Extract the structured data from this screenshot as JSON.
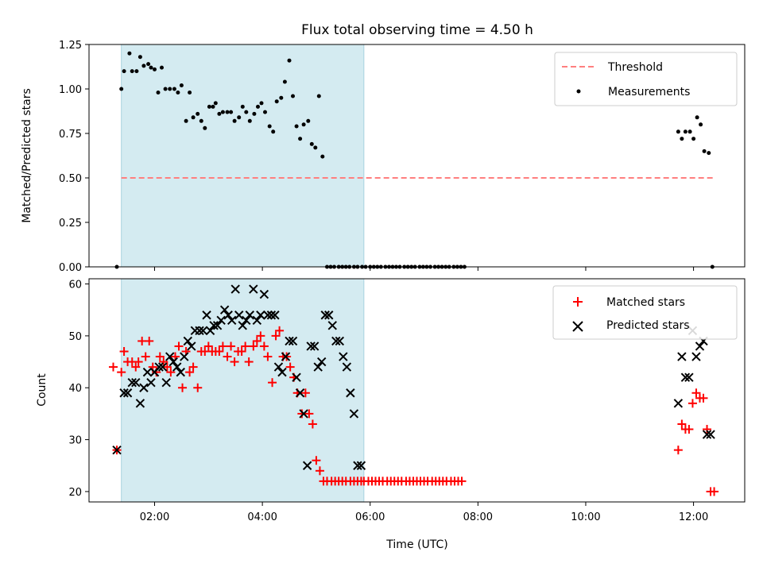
{
  "chart_data": [
    {
      "type": "scatter",
      "title": "Flux total observing time = 4.50 h",
      "xlabel": "",
      "ylabel": "Matched/Predicted stars",
      "ylim": [
        0,
        1.25
      ],
      "yticks": [
        "0.00",
        "0.25",
        "0.50",
        "0.75",
        "1.00",
        "1.25"
      ],
      "xlim": [
        "00:47",
        "12:57"
      ],
      "legend_position": "top-right",
      "shaded_interval": {
        "start": "01:23",
        "end": "05:53",
        "color": "#d4ebf1"
      },
      "threshold": {
        "name": "Threshold",
        "value": 0.5,
        "x_start": "01:23",
        "x_end": "12:23",
        "color": "#ff7f7f"
      },
      "series": [
        {
          "name": "Measurements",
          "color": "#000000",
          "marker": "dot",
          "x": [
            "01:18",
            "01:23",
            "01:26",
            "01:32",
            "01:35",
            "01:40",
            "01:44",
            "01:48",
            "01:53",
            "01:56",
            "02:00",
            "02:04",
            "02:08",
            "02:12",
            "02:17",
            "02:22",
            "02:26",
            "02:30",
            "02:35",
            "02:39",
            "02:43",
            "02:48",
            "02:52",
            "02:56",
            "03:01",
            "03:05",
            "03:08",
            "03:12",
            "03:16",
            "03:21",
            "03:25",
            "03:29",
            "03:34",
            "03:38",
            "03:42",
            "03:46",
            "03:51",
            "03:55",
            "03:59",
            "04:03",
            "04:08",
            "04:12",
            "04:16",
            "04:21",
            "04:25",
            "04:30",
            "04:34",
            "04:38",
            "04:42",
            "04:46",
            "04:51",
            "04:55",
            "04:59",
            "05:03",
            "05:07",
            "05:12",
            "05:16",
            "05:20",
            "05:25",
            "05:29",
            "05:33",
            "05:37",
            "05:42",
            "05:46",
            "05:51",
            "05:55",
            "06:00",
            "06:04",
            "06:08",
            "06:12",
            "06:17",
            "06:21",
            "06:25",
            "06:29",
            "06:33",
            "06:38",
            "06:42",
            "06:46",
            "06:50",
            "06:55",
            "06:59",
            "07:03",
            "07:07",
            "07:12",
            "07:16",
            "07:20",
            "07:24",
            "07:28",
            "07:33",
            "07:37",
            "07:41",
            "07:45",
            "11:43",
            "11:47",
            "11:51",
            "11:56",
            "12:00",
            "12:04",
            "12:08",
            "12:12",
            "12:17",
            "12:21"
          ],
          "y": [
            0.0,
            1.0,
            1.1,
            1.2,
            1.1,
            1.1,
            1.18,
            1.13,
            1.14,
            1.12,
            1.11,
            0.98,
            1.12,
            1.0,
            1.0,
            1.0,
            0.98,
            1.02,
            0.82,
            0.98,
            0.84,
            0.86,
            0.82,
            0.78,
            0.9,
            0.9,
            0.92,
            0.86,
            0.87,
            0.87,
            0.87,
            0.82,
            0.84,
            0.9,
            0.87,
            0.82,
            0.86,
            0.9,
            0.92,
            0.87,
            0.79,
            0.76,
            0.93,
            0.95,
            1.04,
            1.16,
            0.96,
            0.79,
            0.72,
            0.8,
            0.82,
            0.69,
            0.67,
            0.96,
            0.62,
            0.0,
            0.0,
            0.0,
            0.0,
            0.0,
            0.0,
            0.0,
            0.0,
            0.0,
            0.0,
            0.0,
            0.0,
            0.0,
            0.0,
            0.0,
            0.0,
            0.0,
            0.0,
            0.0,
            0.0,
            0.0,
            0.0,
            0.0,
            0.0,
            0.0,
            0.0,
            0.0,
            0.0,
            0.0,
            0.0,
            0.0,
            0.0,
            0.0,
            0.0,
            0.0,
            0.0,
            0.0,
            0.76,
            0.72,
            0.76,
            0.76,
            0.72,
            0.84,
            0.8,
            0.65,
            0.64,
            0.0
          ]
        }
      ]
    },
    {
      "type": "scatter",
      "title": "",
      "xlabel": "Time (UTC)",
      "ylabel": "Count",
      "ylim": [
        18,
        61
      ],
      "yticks": [
        "20",
        "30",
        "40",
        "50",
        "60"
      ],
      "xticks": [
        "02:00",
        "04:00",
        "06:00",
        "08:00",
        "10:00",
        "12:00"
      ],
      "xlim": [
        "00:47",
        "12:57"
      ],
      "legend_position": "top-right",
      "shaded_interval": {
        "start": "01:23",
        "end": "05:53",
        "color": "#d4ebf1"
      },
      "series": [
        {
          "name": "Matched stars",
          "color": "#ff0000",
          "marker": "plus",
          "x": [
            "01:14",
            "01:18",
            "01:23",
            "01:26",
            "01:30",
            "01:35",
            "01:39",
            "01:42",
            "01:46",
            "01:50",
            "01:54",
            "01:58",
            "02:02",
            "02:06",
            "02:10",
            "02:14",
            "02:18",
            "02:23",
            "02:27",
            "02:31",
            "02:35",
            "02:39",
            "02:43",
            "02:48",
            "02:52",
            "02:56",
            "03:00",
            "03:04",
            "03:08",
            "03:12",
            "03:16",
            "03:21",
            "03:25",
            "03:29",
            "03:33",
            "03:37",
            "03:41",
            "03:45",
            "03:50",
            "03:54",
            "03:58",
            "04:02",
            "04:06",
            "04:11",
            "04:15",
            "04:19",
            "04:23",
            "04:27",
            "04:31",
            "04:35",
            "04:39",
            "04:44",
            "04:48",
            "04:52",
            "04:56",
            "05:00",
            "05:04",
            "05:08",
            "05:12",
            "05:17",
            "05:21",
            "05:25",
            "05:29",
            "05:33",
            "05:38",
            "05:42",
            "05:46",
            "05:50",
            "05:53",
            "05:58",
            "06:02",
            "06:06",
            "06:10",
            "06:14",
            "06:19",
            "06:23",
            "06:27",
            "06:31",
            "06:35",
            "06:40",
            "06:44",
            "06:48",
            "06:52",
            "06:56",
            "07:00",
            "07:04",
            "07:09",
            "07:13",
            "07:17",
            "07:21",
            "07:25",
            "07:30",
            "07:34",
            "07:38",
            "07:42",
            "11:43",
            "11:47",
            "11:51",
            "11:55",
            "11:59",
            "12:03",
            "12:07",
            "12:11",
            "12:15",
            "12:19",
            "12:23"
          ],
          "y": [
            44,
            28,
            43,
            47,
            45,
            45,
            44,
            45,
            49,
            46,
            49,
            44,
            43,
            46,
            45,
            44,
            43,
            46,
            48,
            40,
            47,
            43,
            44,
            40,
            47,
            47,
            48,
            47,
            47,
            47,
            48,
            46,
            48,
            45,
            47,
            47,
            48,
            45,
            48,
            49,
            50,
            48,
            46,
            41,
            50,
            51,
            46,
            46,
            44,
            42,
            39,
            35,
            39,
            35,
            33,
            26,
            24,
            22,
            22,
            22,
            22,
            22,
            22,
            22,
            22,
            22,
            22,
            22,
            22,
            22,
            22,
            22,
            22,
            22,
            22,
            22,
            22,
            22,
            22,
            22,
            22,
            22,
            22,
            22,
            22,
            22,
            22,
            22,
            22,
            22,
            22,
            22,
            22,
            22,
            22,
            28,
            33,
            32,
            32,
            37,
            39,
            38,
            38,
            32,
            20,
            20
          ]
        },
        {
          "name": "Predicted stars",
          "color": "#000000",
          "marker": "x",
          "x": [
            "01:18",
            "01:26",
            "01:30",
            "01:35",
            "01:39",
            "01:44",
            "01:48",
            "01:52",
            "01:56",
            "02:00",
            "02:05",
            "02:09",
            "02:13",
            "02:17",
            "02:21",
            "02:25",
            "02:29",
            "02:33",
            "02:37",
            "02:41",
            "02:45",
            "02:50",
            "02:54",
            "02:58",
            "03:02",
            "03:06",
            "03:10",
            "03:14",
            "03:18",
            "03:22",
            "03:26",
            "03:30",
            "03:34",
            "03:38",
            "03:42",
            "03:46",
            "03:50",
            "03:54",
            "03:58",
            "04:02",
            "04:06",
            "04:10",
            "04:14",
            "04:18",
            "04:22",
            "04:26",
            "04:30",
            "04:34",
            "04:38",
            "04:42",
            "04:46",
            "04:50",
            "04:54",
            "04:58",
            "05:02",
            "05:06",
            "05:10",
            "05:14",
            "05:18",
            "05:22",
            "05:26",
            "05:30",
            "05:34",
            "05:38",
            "05:42",
            "05:46",
            "05:50",
            "11:43",
            "11:47",
            "11:51",
            "11:55",
            "11:59",
            "12:03",
            "12:07",
            "12:11",
            "12:15",
            "12:19"
          ],
          "y": [
            28,
            39,
            39,
            41,
            41,
            37,
            40,
            43,
            41,
            43,
            44,
            44,
            41,
            46,
            45,
            44,
            43,
            46,
            49,
            48,
            51,
            51,
            51,
            54,
            51,
            52,
            52,
            53,
            55,
            54,
            53,
            59,
            54,
            52,
            53,
            54,
            59,
            53,
            54,
            58,
            54,
            54,
            54,
            44,
            43,
            46,
            49,
            49,
            42,
            39,
            35,
            25,
            48,
            48,
            44,
            45,
            54,
            54,
            52,
            49,
            49,
            46,
            44,
            39,
            35,
            25,
            25,
            37,
            46,
            42,
            42,
            51,
            46,
            48,
            49,
            31,
            31
          ]
        }
      ]
    }
  ]
}
